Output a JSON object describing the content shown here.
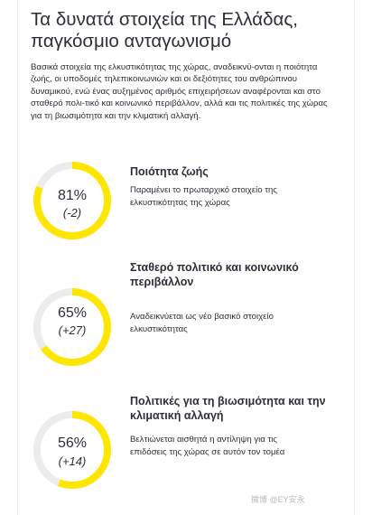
{
  "header": {
    "title": "Τα δυνατά στοιχεία της Ελλάδας, παγκόσμιο ανταγωνισμό",
    "intro": "Βασικά στοιχεία της ελκυστικότητας της χώρας, αναδεικνύ-ονται η ποιότητα ζωής, οι υποδομές τηλεπικοινωνιών και οι δεξιότητες του ανθρώπινου δυναμικού, ενώ ένας αυξημένος αριθμός επιχειρήσεων αναφέρονται και στο σταθερό πολι-τικό και κοινωνικό περιβάλλον, αλλά και τις πολιτικές της χώρας για τη βιωσιμότητα και την κλιματική αλλαγή."
  },
  "stats": [
    {
      "percent_label": "81%",
      "change_label": "(-2)",
      "value": 81,
      "title": "Ποιότητα ζωής",
      "description": "Παραμένει το πρωταρχικό στοιχείο της ελκυστικότητας της χώρας"
    },
    {
      "percent_label": "65%",
      "change_label": "(+27)",
      "value": 65,
      "title": "Σταθερό πολιτικό και κοινωνικό περιβάλλον",
      "description": "Αναδεικνύεται ως νέο βασικό στοιχείο ελκυστικότητας"
    },
    {
      "percent_label": "56%",
      "change_label": "(+14)",
      "value": 56,
      "title": "Πολιτικές για τη βιωσιμότητα και την κλιματική αλλαγή",
      "description": "Βελτιώνεται αισθητά η αντίληψη για τις επιδόσεις της χώρας σε αυτόν τον τομέα"
    }
  ],
  "colors": {
    "accent": "#ffe600",
    "track": "#ececec",
    "text": "#2e2e38"
  },
  "watermark": "微博 @EY安永"
}
